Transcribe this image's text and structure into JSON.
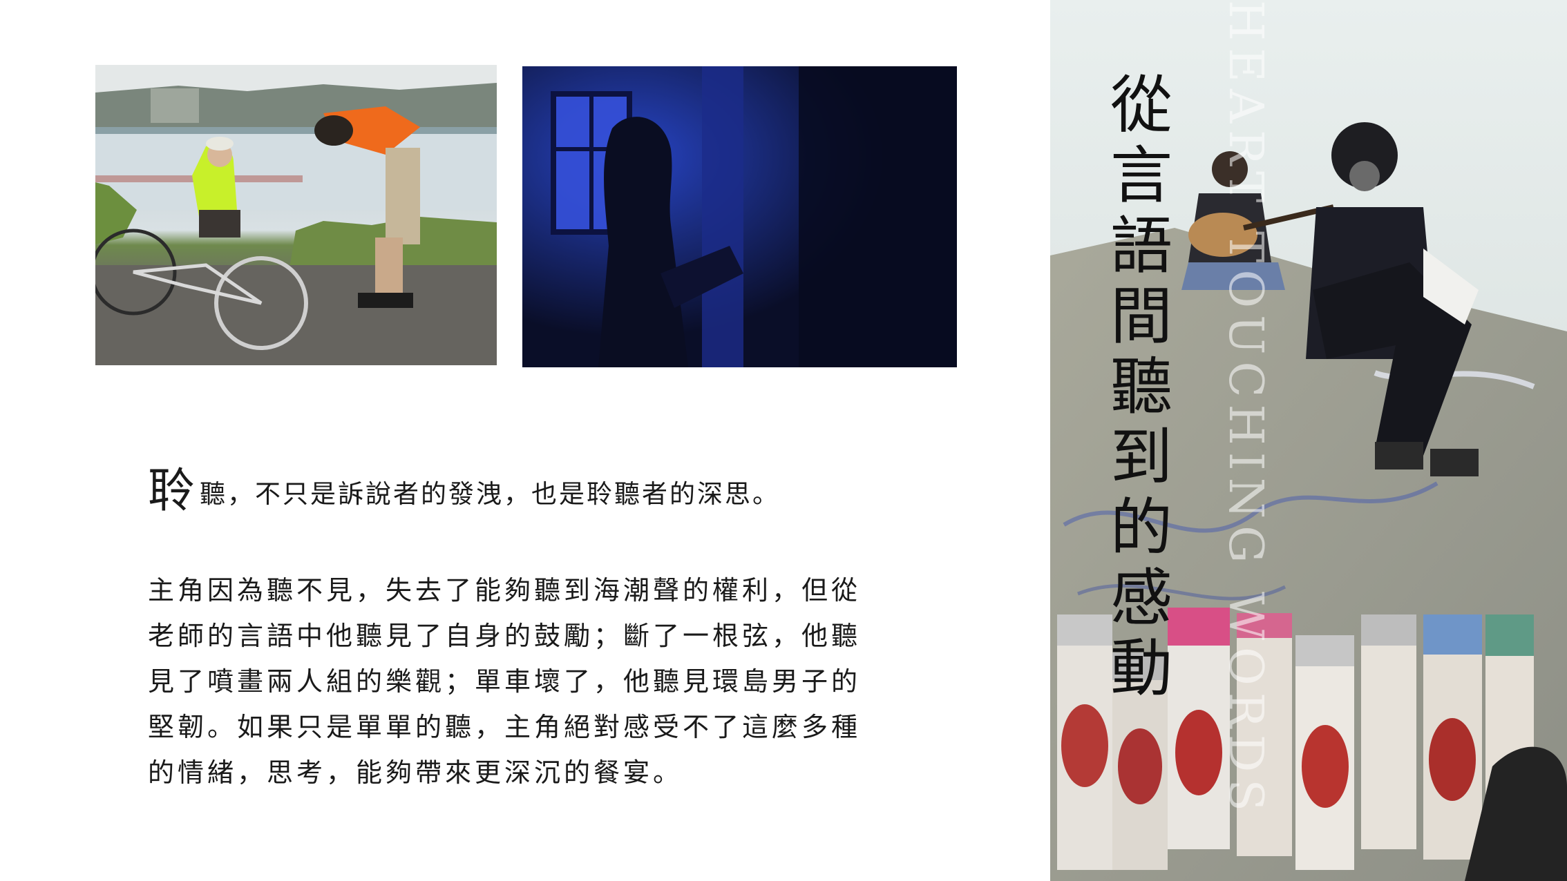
{
  "headline": {
    "drop_cap": "聆",
    "rest": "聽，不只是訴說者的發洩，也是聆聽者的深思。"
  },
  "body_lines": [
    "主角因為聽不見，失去了能夠聽到海潮聲的權利，但從",
    "老師的言語中他聽見了自身的鼓勵；斷了一根弦，他聽",
    "見了噴畫兩人組的樂觀；單車壞了，他聽見環島男子的",
    "堅韌。如果只是單單的聽，主角絕對感受不了這麼多種",
    "的情緒，思考，能夠帶來更深沉的餐宴。"
  ],
  "panel": {
    "watermark": "HEART TOUCHING WORDS",
    "title_chars": [
      "從",
      "言",
      "語",
      "間",
      "聽",
      "到",
      "的",
      "感",
      "動"
    ]
  },
  "colors": {
    "text": "#1a1a1a",
    "title": "#111111",
    "photo2_blue": "#1d3bb0"
  }
}
